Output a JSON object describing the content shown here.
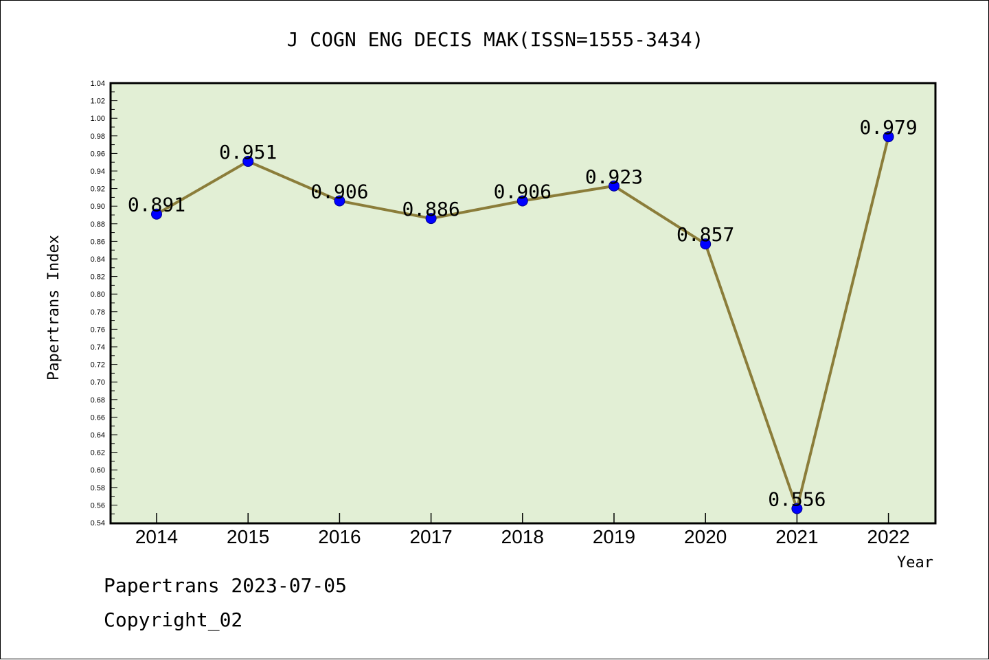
{
  "chart_data": {
    "type": "line",
    "title": "J COGN ENG DECIS MAK(ISSN=1555-3434)",
    "xlabel": "Year",
    "ylabel": "Papertrans Index",
    "categories": [
      "2014",
      "2015",
      "2016",
      "2017",
      "2018",
      "2019",
      "2020",
      "2021",
      "2022"
    ],
    "values": [
      0.891,
      0.951,
      0.906,
      0.886,
      0.906,
      0.923,
      0.857,
      0.556,
      0.979
    ],
    "value_labels": [
      "0.891",
      "0.951",
      "0.906",
      "0.886",
      "0.906",
      "0.923",
      "0.857",
      "0.556",
      "0.979"
    ],
    "ylim": [
      0.54,
      1.04
    ],
    "yticks": [
      "0.54",
      "0.56",
      "0.58",
      "0.60",
      "0.62",
      "0.64",
      "0.66",
      "0.68",
      "0.70",
      "0.72",
      "0.74",
      "0.76",
      "0.78",
      "0.80",
      "0.82",
      "0.84",
      "0.86",
      "0.88",
      "0.90",
      "0.92",
      "0.94",
      "0.96",
      "0.98",
      "1.00",
      "1.02",
      "1.04"
    ],
    "colors": {
      "plot_background": "#e2efd5",
      "line": "#8b7d3a",
      "marker": "#0000ff"
    },
    "grid": false,
    "legend": "none"
  },
  "footer": {
    "line1": "Papertrans 2023-07-05",
    "line2": "Copyright_02"
  }
}
